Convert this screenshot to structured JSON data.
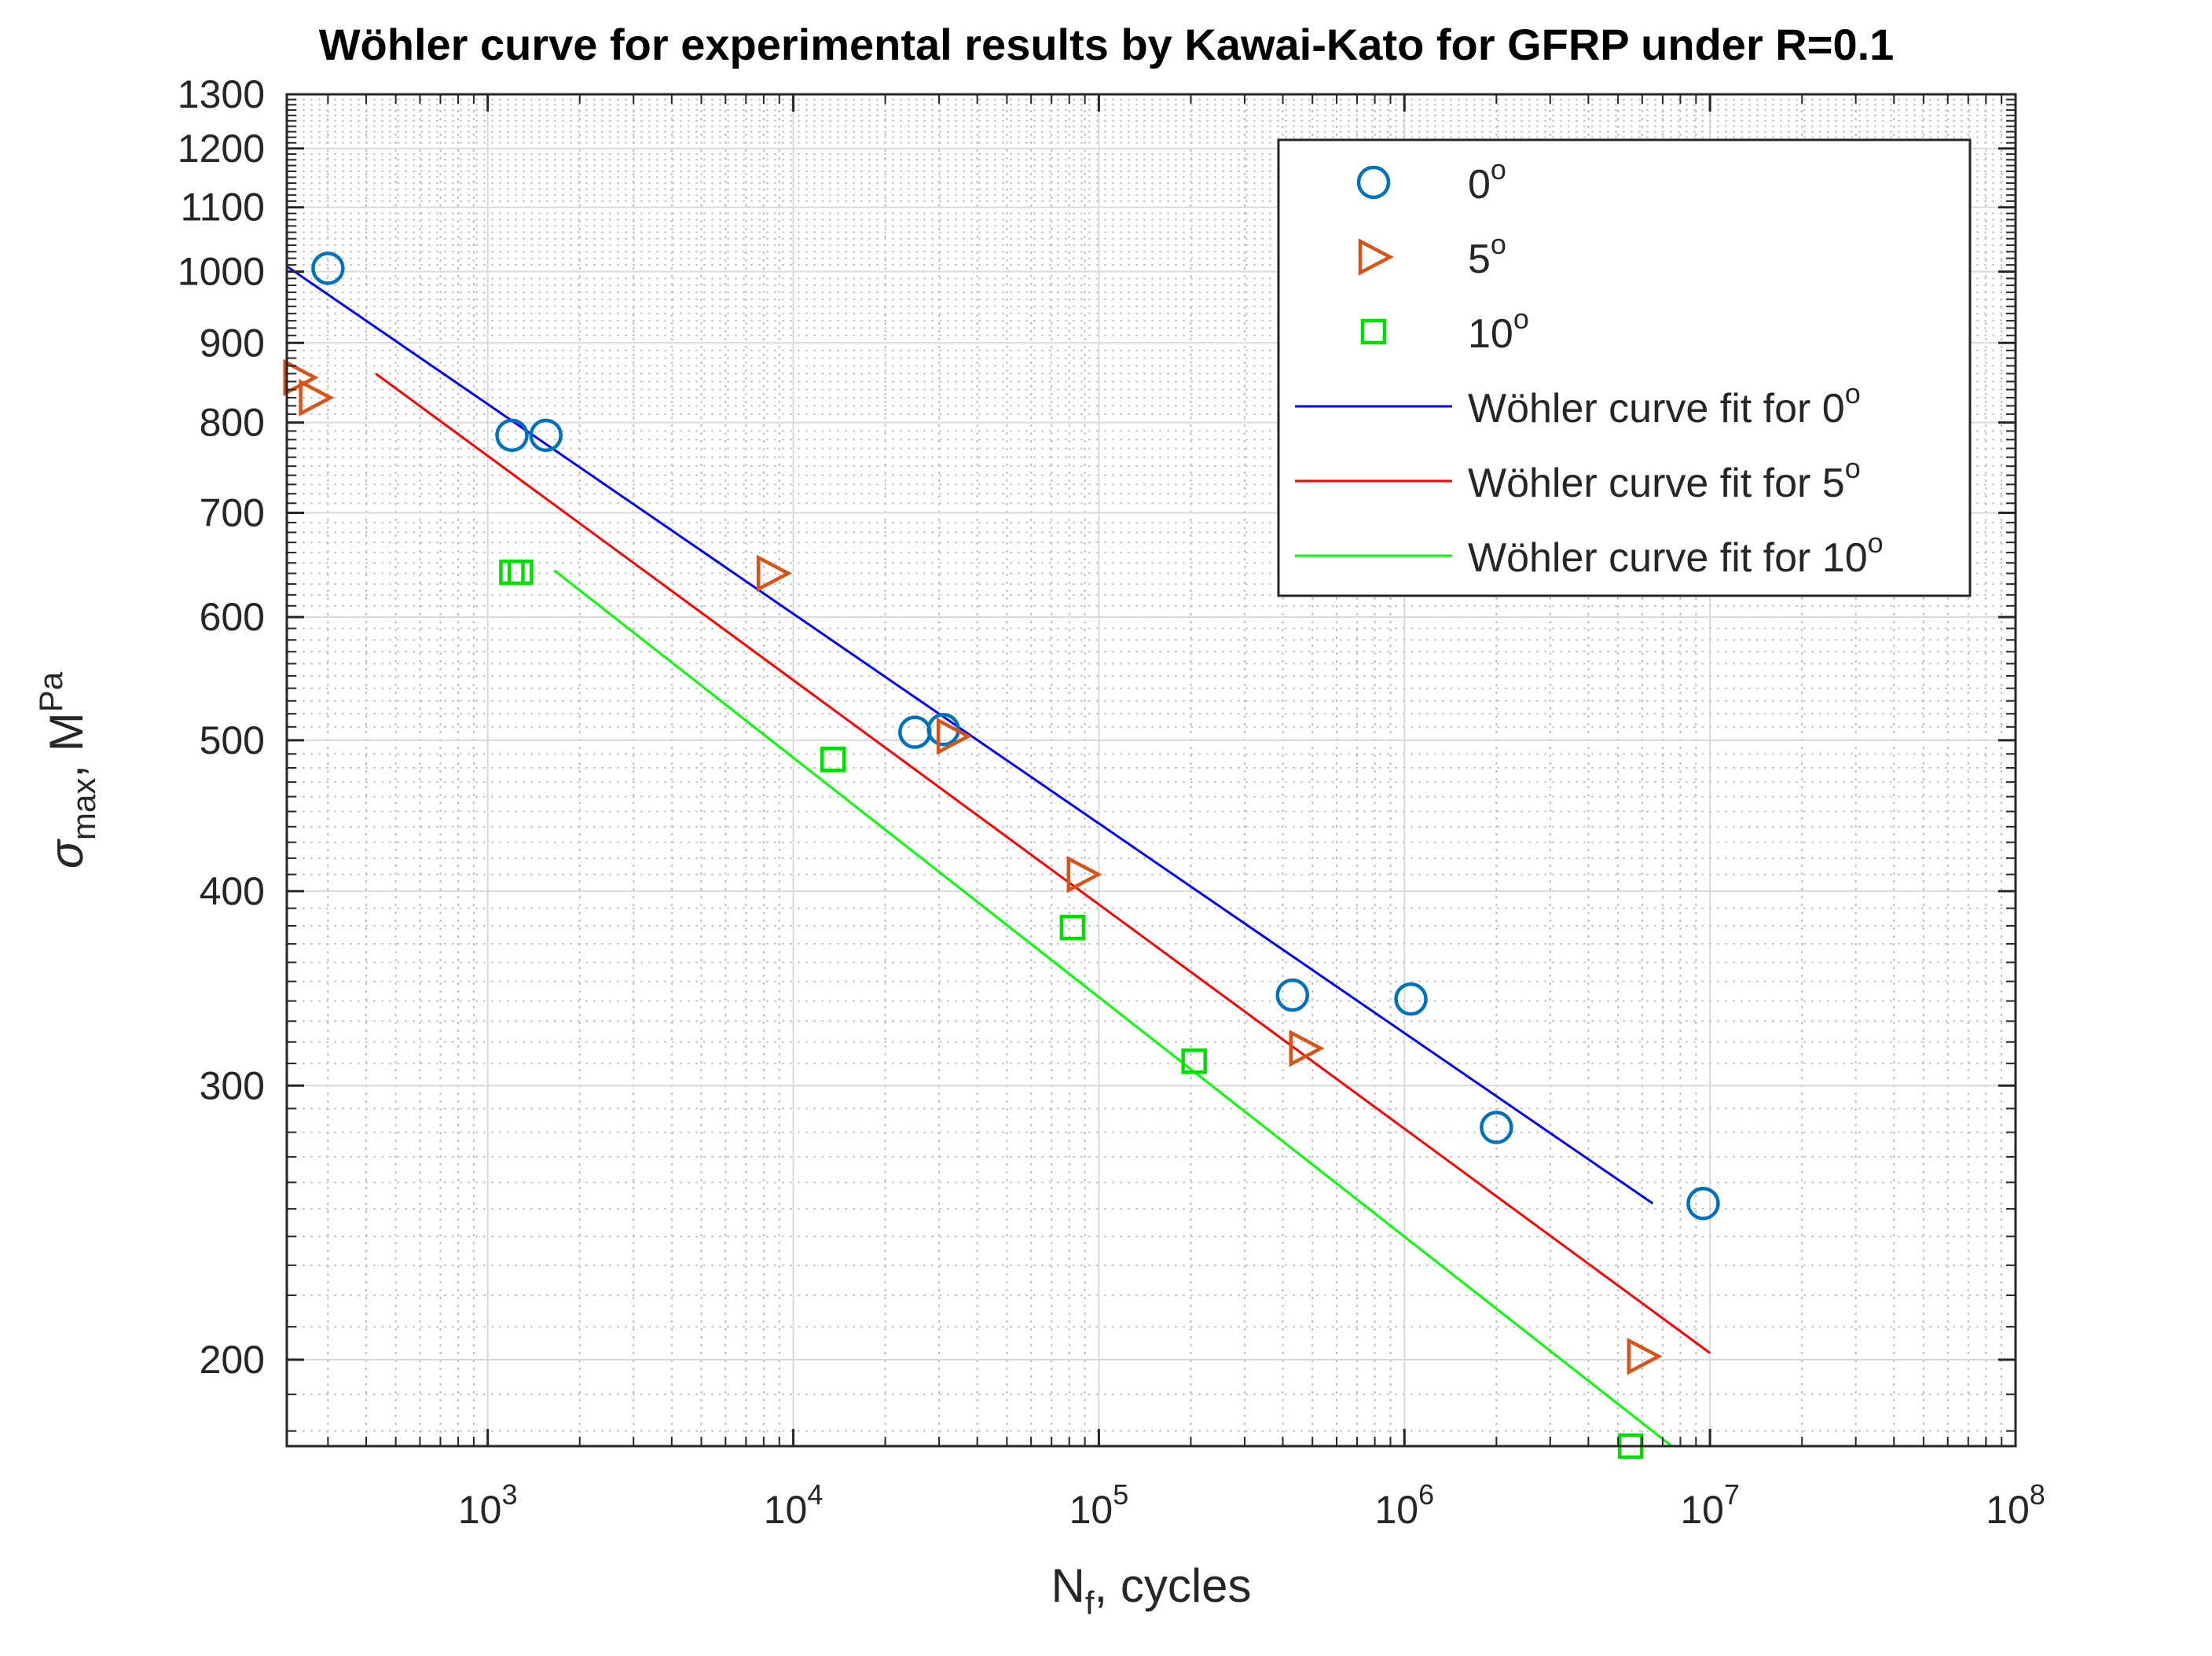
{
  "chart_data": {
    "type": "scatter",
    "title": "Wöhler curve for experimental results by Kawai-Kato for GFRP under R=0.1",
    "xlabel": {
      "main": "N",
      "sub": "f",
      "rest": ", cycles"
    },
    "ylabel": {
      "main": "σ",
      "sub": "max",
      "mid": ", M",
      "sup": "Pa"
    },
    "xscale": "log",
    "yscale": "log",
    "xlim": [
      220,
      100000000
    ],
    "ylim": [
      176,
      1300
    ],
    "grid": true,
    "minor_grid": true,
    "legend_location": "top-right",
    "x_ticks": [
      {
        "value": 1000,
        "base": "10",
        "exp": "3"
      },
      {
        "value": 10000,
        "base": "10",
        "exp": "4"
      },
      {
        "value": 100000,
        "base": "10",
        "exp": "5"
      },
      {
        "value": 1000000,
        "base": "10",
        "exp": "6"
      },
      {
        "value": 10000000,
        "base": "10",
        "exp": "7"
      },
      {
        "value": 100000000,
        "base": "10",
        "exp": "8"
      }
    ],
    "y_ticks": [
      {
        "value": 200,
        "label": "200"
      },
      {
        "value": 300,
        "label": "300"
      },
      {
        "value": 400,
        "label": "400"
      },
      {
        "value": 500,
        "label": "500"
      },
      {
        "value": 600,
        "label": "600"
      },
      {
        "value": 700,
        "label": "700"
      },
      {
        "value": 800,
        "label": "800"
      },
      {
        "value": 900,
        "label": "900"
      },
      {
        "value": 1000,
        "label": "1000"
      },
      {
        "value": 1100,
        "label": "1100"
      },
      {
        "value": 1200,
        "label": "1200"
      },
      {
        "value": 1300,
        "label": "1300"
      }
    ],
    "series": [
      {
        "name": "0°",
        "label_base": "0",
        "label_sup": "o",
        "marker": "circle",
        "color": "#0072BD",
        "points": [
          {
            "x": 300,
            "y": 1005
          },
          {
            "x": 1200,
            "y": 785
          },
          {
            "x": 1550,
            "y": 785
          },
          {
            "x": 25000,
            "y": 506
          },
          {
            "x": 31000,
            "y": 508
          },
          {
            "x": 430000,
            "y": 343
          },
          {
            "x": 1050000,
            "y": 341
          },
          {
            "x": 2000000,
            "y": 282
          },
          {
            "x": 9500000,
            "y": 252
          }
        ]
      },
      {
        "name": "5°",
        "label_base": "5",
        "label_sup": "o",
        "marker": "triangle-right",
        "color": "#D95319",
        "points": [
          {
            "x": 240,
            "y": 855
          },
          {
            "x": 270,
            "y": 830
          },
          {
            "x": 8500,
            "y": 640
          },
          {
            "x": 33000,
            "y": 503
          },
          {
            "x": 88000,
            "y": 410
          },
          {
            "x": 470000,
            "y": 317
          },
          {
            "x": 6000000,
            "y": 201
          }
        ]
      },
      {
        "name": "10°",
        "label_base": "10",
        "label_sup": "o",
        "marker": "square",
        "color": "#00DD00",
        "points": [
          {
            "x": 1200,
            "y": 641
          },
          {
            "x": 1280,
            "y": 641
          },
          {
            "x": 13500,
            "y": 486
          },
          {
            "x": 82000,
            "y": 379
          },
          {
            "x": 205000,
            "y": 311
          },
          {
            "x": 5500000,
            "y": 176
          }
        ]
      }
    ],
    "fits": [
      {
        "name": "Wöhler curve fit for 0°",
        "label_base": "Wöhler curve fit for 0",
        "label_sup": "o",
        "color": "#0000FF",
        "points": [
          {
            "x": 220,
            "y": 1008
          },
          {
            "x": 6500000,
            "y": 252
          }
        ]
      },
      {
        "name": "Wöhler curve fit for 5°",
        "label_base": "Wöhler curve fit for 5",
        "label_sup": "o",
        "color": "#FF0000",
        "points": [
          {
            "x": 430,
            "y": 860
          },
          {
            "x": 10000000,
            "y": 202
          }
        ]
      },
      {
        "name": "Wöhler curve fit for 10°",
        "label_base": "Wöhler curve fit for 10",
        "label_sup": "o",
        "color": "#00FF00",
        "points": [
          {
            "x": 1650,
            "y": 643
          },
          {
            "x": 7500000,
            "y": 176
          }
        ]
      }
    ]
  }
}
